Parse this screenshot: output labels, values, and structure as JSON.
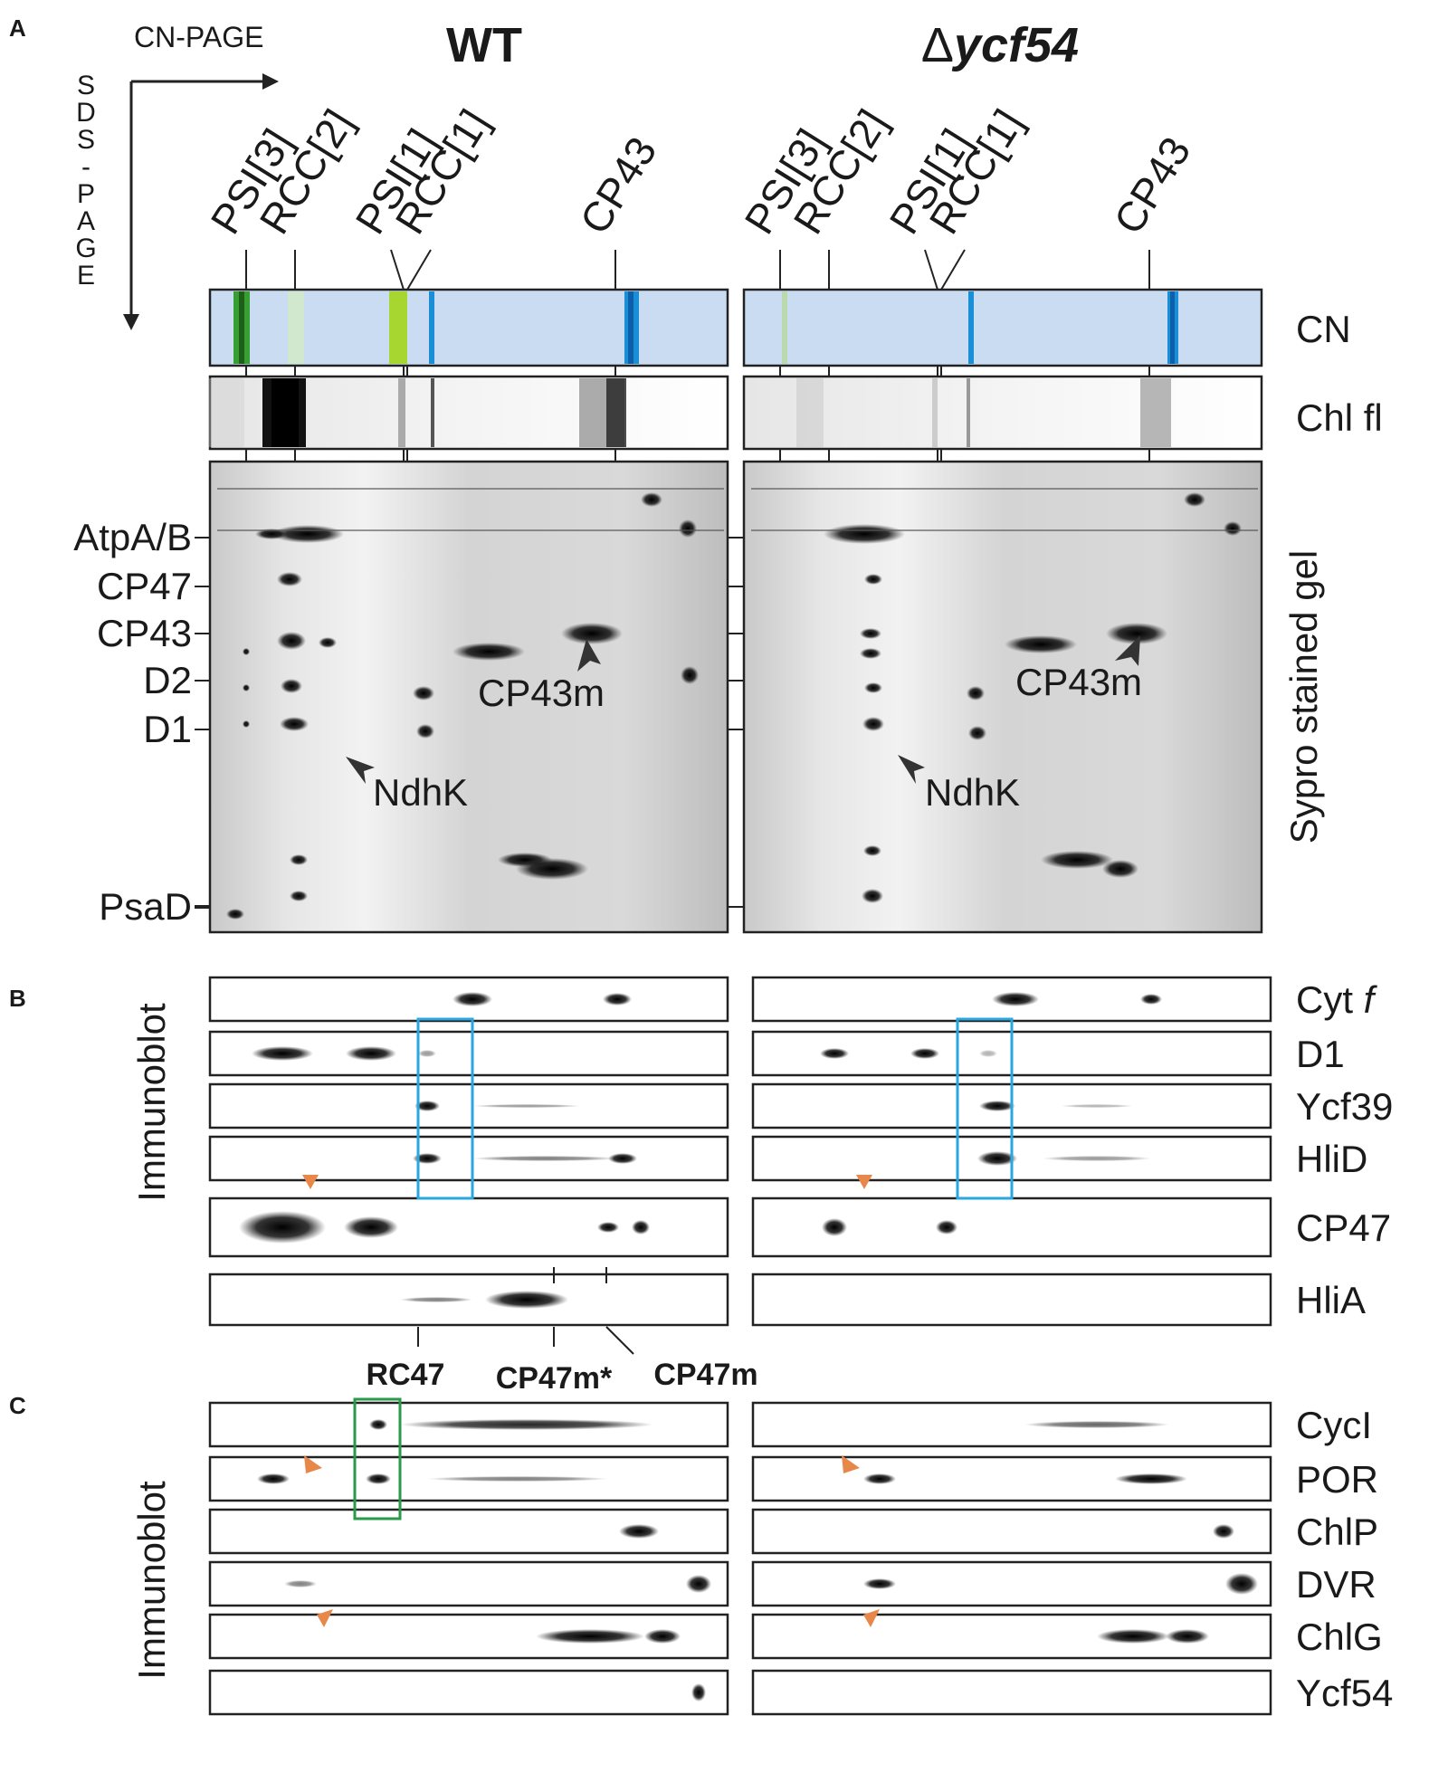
{
  "panels": [
    "A",
    "B",
    "C"
  ],
  "axes": {
    "first_dim": "CN-PAGE",
    "second_dim": "S D S - P A G E"
  },
  "conditions": {
    "wt": "WT",
    "mutant_prefix": "Δ",
    "mutant": "ycf54"
  },
  "cn_complexes": [
    "PSI[3]",
    "RCC[2]",
    "PSI[1]",
    "RCC[1]",
    "CP43"
  ],
  "strip_labels": [
    "CN",
    "Chl fl"
  ],
  "gel_label": "Sypro stained gel",
  "gel_markers": [
    "AtpA/B",
    "CP47",
    "CP43",
    "D2",
    "D1",
    "PsaD"
  ],
  "gel_annotations": [
    "CP43m",
    "NdhK"
  ],
  "immunoblot_label": "Immunoblot",
  "blots_b": [
    "Cyt f",
    "D1",
    "Ycf39",
    "HliD",
    "CP47",
    "HliA"
  ],
  "b_complexes": [
    "RC47",
    "CP47m*",
    "CP47m"
  ],
  "blots_c": [
    "CycI",
    "POR",
    "ChlP",
    "DVR",
    "ChlG",
    "Ycf54"
  ],
  "colors": {
    "cn_bg": "#c9dcf2",
    "psi_green": "#2f9a28",
    "psi_lime": "#a8d630",
    "cn_blue": "#1a8fd8",
    "cyan_box": "#29a8e0",
    "green_box": "#2a9a4a",
    "arrowhead": "#e8874a"
  }
}
